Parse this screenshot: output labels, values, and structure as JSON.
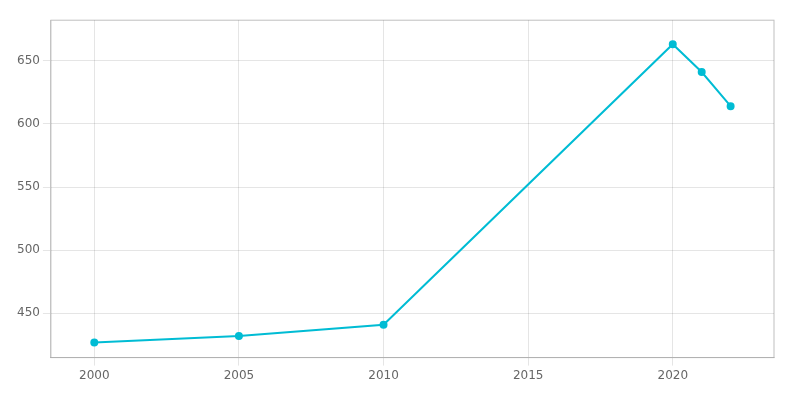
{
  "chart_data": {
    "type": "line",
    "x": [
      2000,
      2005,
      2010,
      2020,
      2021,
      2022
    ],
    "values": [
      427,
      432,
      441,
      663,
      641,
      614
    ],
    "color": "#00BCD4",
    "marker": "circle",
    "xlim": [
      1998.5,
      2023.5
    ],
    "ylim": [
      415,
      682
    ],
    "xticks": [
      2000,
      2005,
      2010,
      2015,
      2020
    ],
    "yticks": [
      450,
      500,
      550,
      600,
      650
    ],
    "grid": true
  }
}
